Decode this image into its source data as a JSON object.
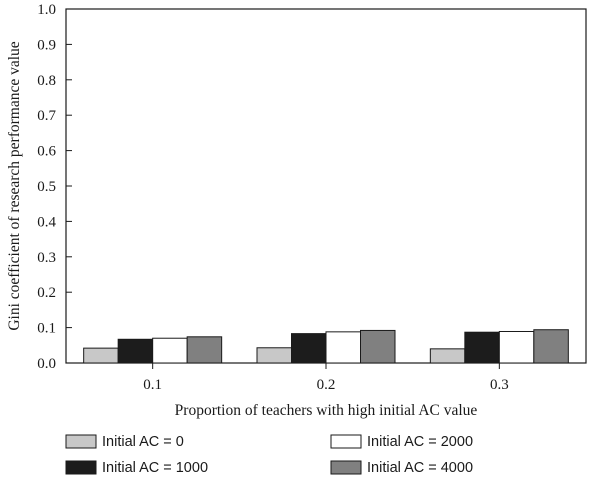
{
  "chart_data": {
    "type": "bar",
    "xlabel": "Proportion of teachers with high initial AC value",
    "ylabel": "Gini coefficient of research performance value",
    "ylim": [
      0,
      1.0
    ],
    "yticks": [
      "0.0",
      "0.1",
      "0.2",
      "0.3",
      "0.4",
      "0.5",
      "0.6",
      "0.7",
      "0.8",
      "0.9",
      "1.0"
    ],
    "categories": [
      "0.1",
      "0.2",
      "0.3"
    ],
    "legend_position": "bottom",
    "grid": false,
    "series": [
      {
        "name": "Initial AC = 0",
        "color": "#c8c8c8",
        "values": [
          0.042,
          0.043,
          0.04
        ]
      },
      {
        "name": "Initial AC = 1000",
        "color": "#1c1c1c",
        "values": [
          0.067,
          0.083,
          0.087
        ]
      },
      {
        "name": "Initial AC = 2000",
        "color": "#ffffff",
        "values": [
          0.07,
          0.088,
          0.089
        ]
      },
      {
        "name": "Initial AC = 4000",
        "color": "#808080",
        "values": [
          0.074,
          0.092,
          0.094
        ]
      }
    ]
  }
}
